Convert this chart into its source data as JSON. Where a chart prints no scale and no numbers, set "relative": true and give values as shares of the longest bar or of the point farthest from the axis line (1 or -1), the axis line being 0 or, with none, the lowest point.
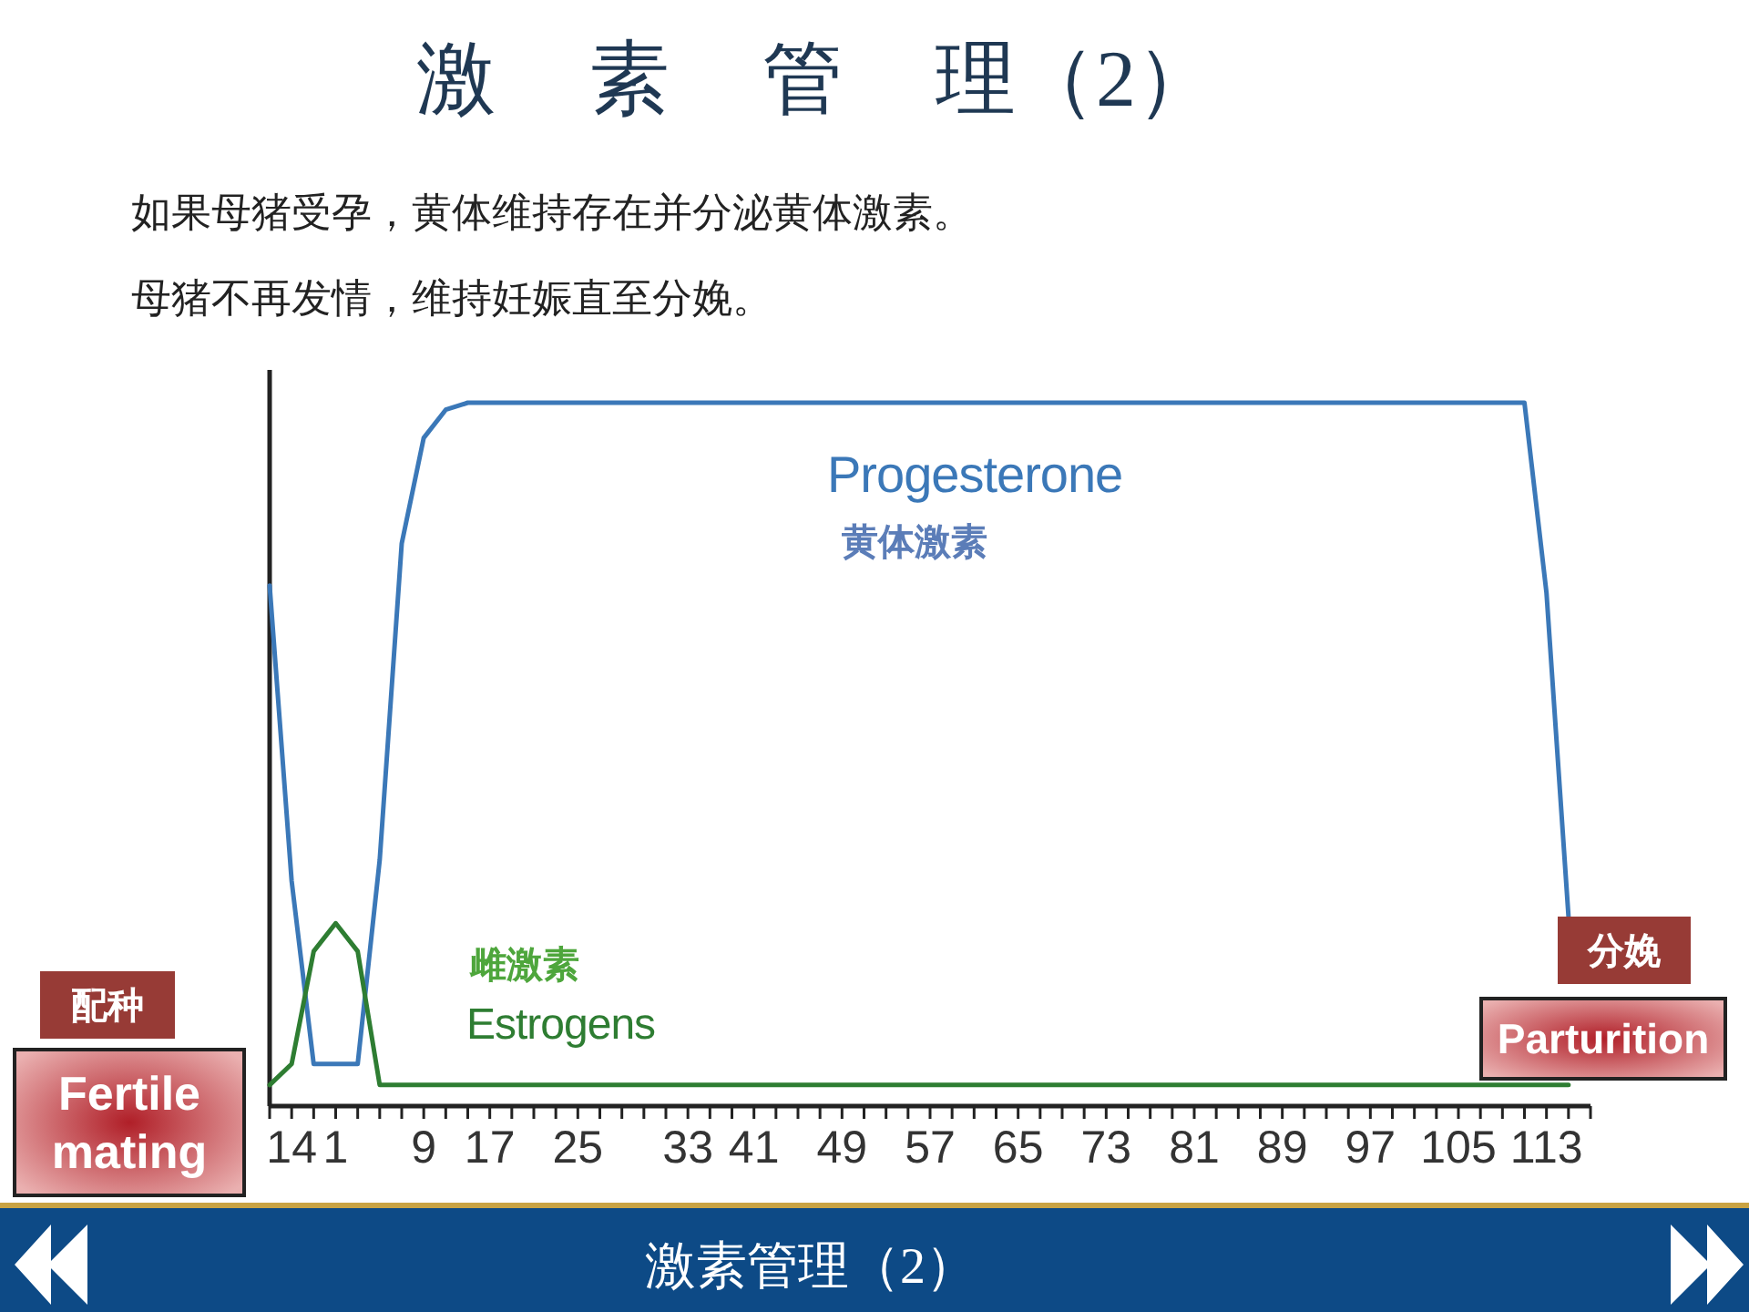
{
  "chart_data": {
    "type": "line",
    "title": "激 素 管 理（2）",
    "categories": [
      null,
      "14",
      null,
      "1",
      null,
      null,
      null,
      "9",
      null,
      null,
      "17",
      null,
      null,
      null,
      "25",
      null,
      null,
      null,
      null,
      "33",
      null,
      null,
      "41",
      null,
      null,
      null,
      "49",
      null,
      null,
      null,
      "57",
      null,
      null,
      null,
      "65",
      null,
      null,
      null,
      "73",
      null,
      null,
      null,
      "81",
      null,
      null,
      null,
      "89",
      null,
      null,
      null,
      "97",
      null,
      null,
      null,
      "105",
      null,
      null,
      null,
      "113",
      null,
      null
    ],
    "relative": true,
    "series": [
      {
        "name": "Progesterone",
        "color": "#3b78b8",
        "values": [
          0.74,
          0.32,
          0.06,
          0.06,
          0.06,
          0.35,
          0.8,
          0.95,
          0.99,
          1,
          1,
          1,
          1,
          1,
          1,
          1,
          1,
          1,
          1,
          1,
          1,
          1,
          1,
          1,
          1,
          1,
          1,
          1,
          1,
          1,
          1,
          1,
          1,
          1,
          1,
          1,
          1,
          1,
          1,
          1,
          1,
          1,
          1,
          1,
          1,
          1,
          1,
          1,
          1,
          1,
          1,
          1,
          1,
          1,
          1,
          1,
          1,
          1,
          0.73,
          0.27,
          null
        ]
      },
      {
        "name": "Estrogens",
        "color": "#2e7d32",
        "values": [
          0.03,
          0.06,
          0.22,
          0.26,
          0.22,
          0.03,
          0.03,
          0.03,
          0.03,
          0.03,
          0.03,
          0.03,
          0.03,
          0.03,
          0.03,
          0.03,
          0.03,
          0.03,
          0.03,
          0.03,
          0.03,
          0.03,
          0.03,
          0.03,
          0.03,
          0.03,
          0.03,
          0.03,
          0.03,
          0.03,
          0.03,
          0.03,
          0.03,
          0.03,
          0.03,
          0.03,
          0.03,
          0.03,
          0.03,
          0.03,
          0.03,
          0.03,
          0.03,
          0.03,
          0.03,
          0.03,
          0.03,
          0.03,
          0.03,
          0.03,
          0.03,
          0.03,
          0.03,
          0.03,
          0.03,
          0.03,
          0.03,
          0.03,
          0.03,
          0.03,
          null
        ]
      }
    ],
    "annotations": [
      "如果母猪受孕，黄体维持存在并分泌黄体激素。",
      "母猪不再发情，维持妊娠直至分娩。",
      "黄体激素",
      "雌激素",
      "配种",
      "Fertile mating",
      "分娩",
      "Parturition",
      "激素管理（2）"
    ]
  }
}
